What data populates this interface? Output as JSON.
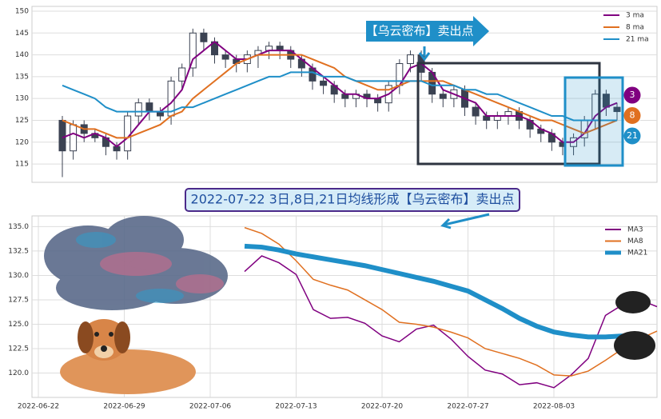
{
  "chart_data": [
    {
      "type": "candlestick",
      "grid": true,
      "legend": "upper right",
      "open": [
        125,
        118,
        124,
        122,
        121,
        119,
        118,
        126,
        129,
        127,
        126,
        134,
        137,
        145,
        143,
        140,
        139,
        138,
        140,
        141,
        142,
        141,
        139,
        137,
        134,
        133,
        131,
        130,
        131,
        130,
        129,
        133,
        138,
        140,
        136,
        131,
        130,
        132,
        128,
        126,
        125,
        126,
        127,
        125,
        123,
        122,
        120,
        119,
        121,
        125,
        131,
        128
      ],
      "high": [
        126,
        125,
        125,
        123,
        122,
        120,
        127,
        130,
        130,
        128,
        135,
        138,
        146,
        146,
        144,
        141,
        140,
        141,
        142,
        143,
        143,
        142,
        140,
        138,
        135,
        134,
        132,
        132,
        132,
        131,
        134,
        139,
        141,
        141,
        137,
        132,
        133,
        133,
        129,
        127,
        127,
        128,
        128,
        126,
        124,
        123,
        121,
        122,
        126,
        132,
        132,
        129
      ],
      "low": [
        112,
        116,
        120,
        120,
        117,
        116,
        116,
        124,
        125,
        125,
        124,
        132,
        135,
        141,
        138,
        137,
        136,
        136,
        137,
        139,
        139,
        137,
        135,
        132,
        131,
        129,
        128,
        128,
        128,
        127,
        127,
        131,
        136,
        134,
        129,
        128,
        128,
        126,
        124,
        123,
        123,
        124,
        123,
        121,
        120,
        118,
        117,
        117,
        119,
        123,
        126,
        125
      ],
      "close": [
        118,
        124,
        122,
        121,
        119,
        118,
        126,
        129,
        127,
        126,
        134,
        137,
        145,
        143,
        140,
        139,
        138,
        140,
        141,
        142,
        141,
        139,
        137,
        134,
        133,
        131,
        130,
        131,
        130,
        129,
        133,
        138,
        140,
        136,
        131,
        130,
        132,
        128,
        126,
        125,
        126,
        127,
        125,
        123,
        122,
        120,
        119,
        121,
        125,
        131,
        128,
        127
      ],
      "series": [
        {
          "name": "3 ma",
          "color": "#800080",
          "values": [
            121,
            122,
            121,
            122,
            121,
            119,
            121,
            124,
            127,
            127,
            129,
            132,
            139,
            141,
            143,
            141,
            139,
            139,
            140,
            141,
            141,
            141,
            139,
            137,
            135,
            133,
            131,
            131,
            130,
            130,
            131,
            133,
            137,
            138,
            136,
            132,
            131,
            130,
            129,
            126,
            126,
            126,
            126,
            125,
            123,
            122,
            120,
            120,
            122,
            126,
            128,
            129
          ]
        },
        {
          "name": "8 ma",
          "color": "#e07020",
          "values": [
            125,
            124,
            123,
            123,
            122,
            121,
            121,
            122,
            123,
            124,
            126,
            127,
            130,
            132,
            134,
            136,
            138,
            139,
            140,
            140,
            140,
            140,
            140,
            139,
            138,
            137,
            135,
            134,
            133,
            132,
            132,
            133,
            134,
            134,
            134,
            134,
            133,
            132,
            131,
            130,
            129,
            128,
            127,
            126,
            125,
            125,
            124,
            123,
            122,
            123,
            124,
            125
          ]
        },
        {
          "name": "21 ma",
          "color": "#1f8fc8",
          "values": [
            133,
            132,
            131,
            130,
            128,
            127,
            127,
            127,
            127,
            127,
            127,
            128,
            128,
            129,
            130,
            131,
            132,
            133,
            134,
            135,
            135,
            136,
            136,
            136,
            135,
            135,
            135,
            134,
            134,
            134,
            134,
            134,
            134,
            134,
            133,
            133,
            133,
            132,
            132,
            131,
            131,
            130,
            129,
            128,
            127,
            126,
            126,
            125,
            125,
            125,
            125,
            125
          ]
        }
      ],
      "ylim": [
        110.8,
        151.1
      ],
      "yticks": [
        115,
        120,
        125,
        130,
        135,
        140,
        145,
        150
      ],
      "annotation": "【乌云密布】卖出点",
      "end_labels": [
        "3",
        "8",
        "21"
      ]
    },
    {
      "type": "line",
      "grid": true,
      "legend": "upper right",
      "title": "2022-07-22 3日,8日,21日均线形成【乌云密布】卖出点",
      "categories": [
        "2022-06-22",
        null,
        null,
        null,
        null,
        "2022-06-29",
        null,
        null,
        null,
        null,
        "2022-07-06",
        null,
        null,
        null,
        null,
        "2022-07-13",
        null,
        null,
        null,
        null,
        "2022-07-20",
        null,
        null,
        null,
        null,
        "2022-07-27",
        null,
        null,
        null,
        null,
        "2022-08-03",
        null,
        null,
        null,
        null,
        null,
        null
      ],
      "series": [
        {
          "name": "MA3",
          "color": "#800080",
          "values": [
            null,
            null,
            null,
            null,
            null,
            null,
            null,
            null,
            null,
            null,
            null,
            null,
            130.4,
            132.0,
            131.3,
            130.1,
            126.5,
            125.6,
            125.7,
            125.1,
            123.8,
            123.2,
            124.5,
            124.9,
            123.5,
            121.7,
            120.3,
            119.9,
            118.8,
            119.0,
            118.5,
            119.8,
            121.5,
            125.9,
            127.0,
            127.5,
            126.8
          ]
        },
        {
          "name": "MA8",
          "color": "#e07020",
          "values": [
            null,
            null,
            null,
            null,
            null,
            null,
            null,
            null,
            null,
            null,
            null,
            null,
            134.9,
            134.3,
            133.2,
            131.5,
            129.6,
            129.0,
            128.5,
            127.5,
            126.5,
            125.2,
            125.0,
            124.7,
            124.2,
            123.6,
            122.5,
            122.0,
            121.5,
            120.8,
            119.8,
            119.7,
            120.2,
            121.3,
            122.5,
            123.5,
            124.3
          ]
        },
        {
          "name": "MA21",
          "color": "#1f8fc8",
          "values": [
            null,
            null,
            null,
            null,
            null,
            null,
            null,
            null,
            null,
            null,
            null,
            null,
            133.0,
            132.9,
            132.6,
            132.2,
            131.9,
            131.6,
            131.3,
            131.0,
            130.6,
            130.2,
            129.8,
            129.4,
            128.9,
            128.4,
            127.5,
            126.6,
            125.6,
            124.8,
            124.2,
            123.9,
            123.7,
            123.7,
            123.8,
            null,
            null
          ]
        }
      ],
      "ylim": [
        117.5,
        136.1
      ],
      "yticks": [
        {
          "value": 120,
          "label": "120.0"
        },
        {
          "value": 122.5,
          "label": "122.5"
        },
        {
          "value": 125,
          "label": "125.0"
        },
        {
          "value": 127.5,
          "label": "127.5"
        },
        {
          "value": 130,
          "label": "130.0"
        },
        {
          "value": 132.5,
          "label": "132.5"
        },
        {
          "value": 135,
          "label": "135.0"
        }
      ]
    }
  ]
}
